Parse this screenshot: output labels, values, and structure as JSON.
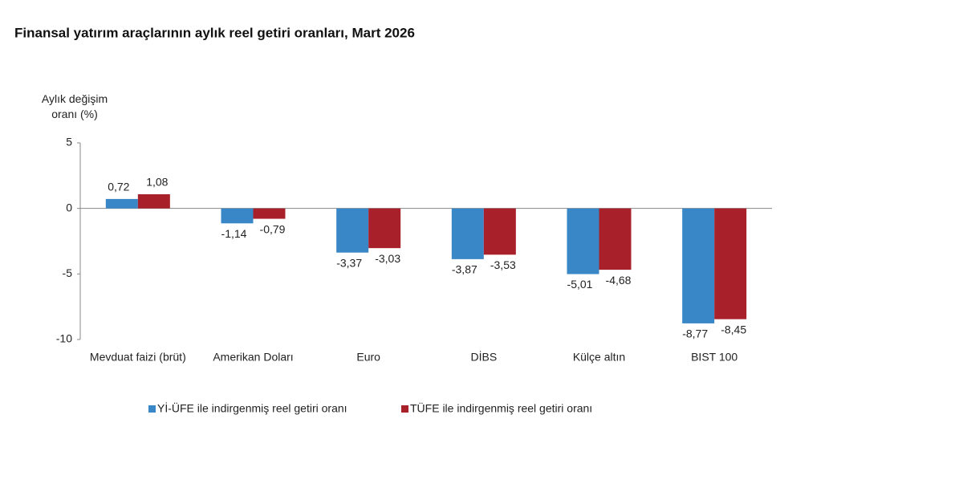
{
  "chart_data": {
    "type": "bar",
    "title": "Finansal yatırım araçlarının aylık reel getiri oranları, Mart 2026",
    "y_label": "Aylık değişim oranı (%)",
    "categories": [
      "Mevduat faizi (brüt)",
      "Amerikan Doları",
      "Euro",
      "DİBS",
      "Külçe altın",
      "BIST 100"
    ],
    "series": [
      {
        "name": "Yİ-ÜFE ile indirgenmiş reel getiri oranı",
        "color": "#3a87c8",
        "values": [
          0.72,
          -1.14,
          -3.37,
          -3.87,
          -5.01,
          -8.77
        ],
        "value_labels": [
          "0,72",
          "-1,14",
          "-3,37",
          "-3,87",
          "-5,01",
          "-8,77"
        ]
      },
      {
        "name": "TÜFE ile indirgenmiş reel getiri oranı",
        "color": "#a8202a",
        "values": [
          1.08,
          -0.79,
          -3.03,
          -3.53,
          -4.68,
          -8.45
        ],
        "value_labels": [
          "1,08",
          "-0,79",
          "-3,03",
          "-3,53",
          "-4,68",
          "-8,45"
        ]
      }
    ],
    "ylim": [
      -10,
      5
    ],
    "yticks": [
      5,
      0,
      -5,
      -10
    ]
  }
}
